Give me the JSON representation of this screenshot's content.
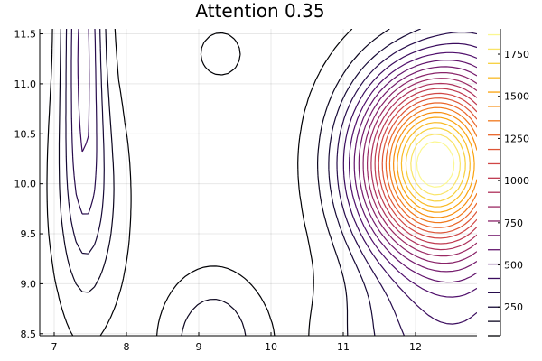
{
  "chart_data": {
    "type": "contour",
    "title": "Attention 0.35",
    "xlabel": "",
    "ylabel": "",
    "xlim": [
      6.8,
      12.85
    ],
    "ylim": [
      8.48,
      11.55
    ],
    "x_ticks": [
      7,
      8,
      9,
      10,
      11,
      12
    ],
    "y_ticks": [
      8.5,
      9.0,
      9.5,
      10.0,
      10.5,
      11.0,
      11.5
    ],
    "x_tick_labels": [
      "7",
      "8",
      "9",
      "10",
      "11",
      "12"
    ],
    "y_tick_labels": [
      "8.5",
      "9.0",
      "9.5",
      "10.0",
      "10.5",
      "11.0",
      "11.5"
    ],
    "grid": true,
    "colorbar": {
      "range": [
        80,
        1900
      ],
      "ticks": [
        250,
        500,
        750,
        1000,
        1250,
        1500,
        1750
      ],
      "tick_labels": [
        "250",
        "500",
        "750",
        "1000",
        "1250",
        "1500",
        "1750"
      ],
      "levels": [
        80,
        165,
        250,
        335,
        420,
        505,
        590,
        675,
        760,
        845,
        930,
        1015,
        1100,
        1185,
        1270,
        1355,
        1440,
        1525,
        1610,
        1695,
        1780,
        1865
      ],
      "colormap": "inferno",
      "colors": [
        "#000004",
        "#1b0c41",
        "#4a0c6b",
        "#781c6d",
        "#a52c60",
        "#cf4446",
        "#ed6925",
        "#fb9b06",
        "#f7d13d",
        "#fcffa4"
      ]
    },
    "peak": {
      "x": 12.2,
      "y": 10.2,
      "value": 1900
    }
  }
}
